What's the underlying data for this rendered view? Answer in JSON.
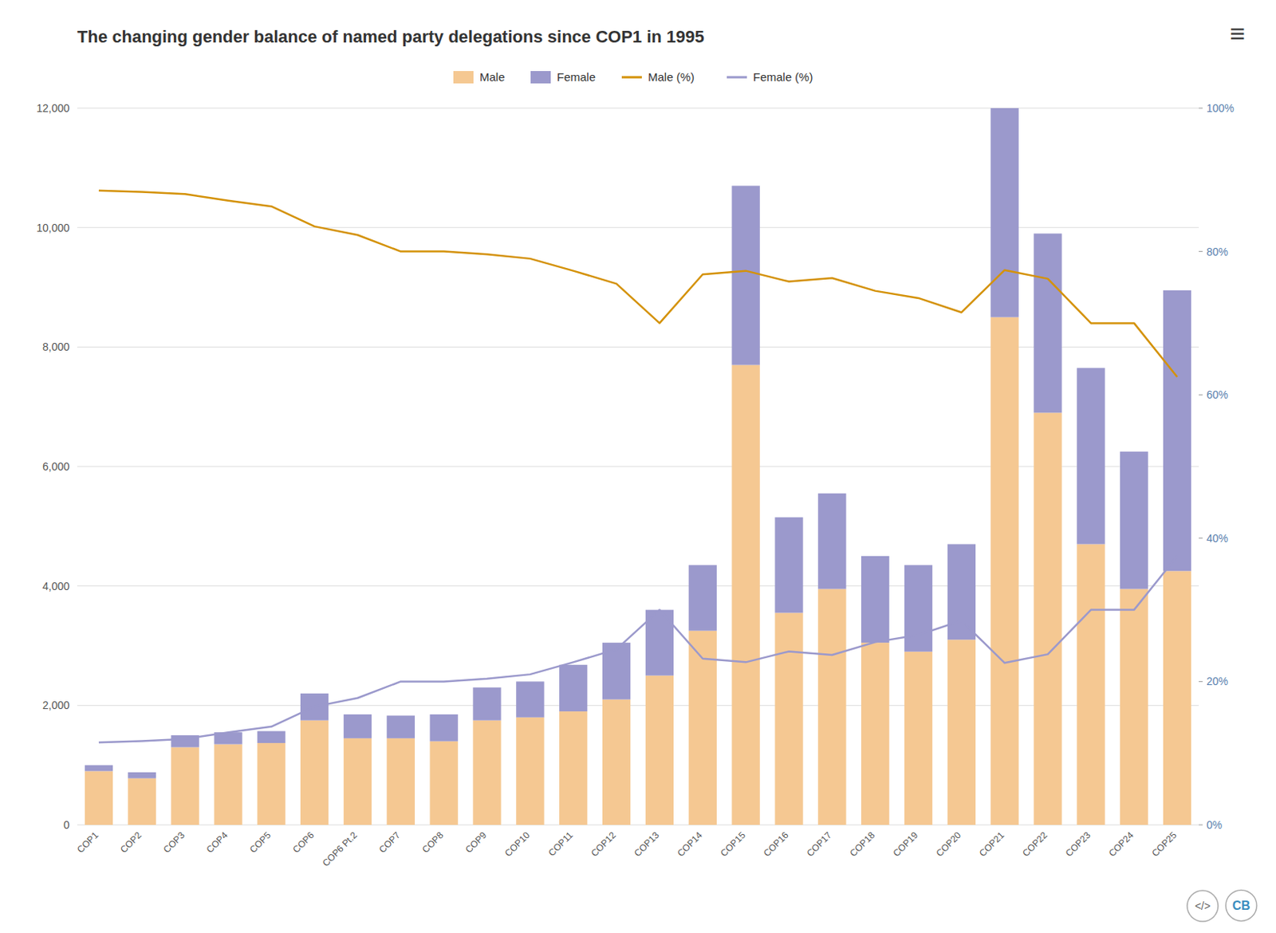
{
  "chart_data": {
    "type": "bar",
    "title": "The changing gender balance of named party delegations since COP1 in 1995",
    "categories": [
      "COP1",
      "COP2",
      "COP3",
      "COP4",
      "COP5",
      "COP6",
      "COP6 Pt.2",
      "COP7",
      "COP8",
      "COP9",
      "COP10",
      "COP11",
      "COP12",
      "COP13",
      "COP14",
      "COP15",
      "COP16",
      "COP17",
      "COP18",
      "COP19",
      "COP20",
      "COP21",
      "COP22",
      "COP23",
      "COP24",
      "COP25"
    ],
    "series": [
      {
        "name": "Male",
        "type": "bar",
        "color": "#F5C892",
        "values": [
          900,
          780,
          1300,
          1350,
          1370,
          1750,
          1450,
          1450,
          1400,
          1750,
          1800,
          1900,
          2100,
          2500,
          3250,
          7700,
          3550,
          3950,
          3050,
          2900,
          3100,
          8500,
          6900,
          4700,
          3950,
          4250
        ]
      },
      {
        "name": "Female",
        "type": "bar",
        "color": "#9B99CC",
        "values": [
          100,
          100,
          200,
          200,
          200,
          450,
          400,
          380,
          450,
          550,
          600,
          780,
          950,
          1100,
          1100,
          3000,
          1600,
          1600,
          1450,
          1450,
          1600,
          3500,
          3000,
          2950,
          2300,
          4700
        ]
      },
      {
        "name": "Male (%)",
        "type": "line",
        "axis": "y2",
        "color": "#D4920A",
        "line_style": "solid",
        "values": [
          0.885,
          0.883,
          0.88,
          0.871,
          0.863,
          0.835,
          0.823,
          0.8,
          0.8,
          0.796,
          0.79,
          0.773,
          0.755,
          0.7,
          0.768,
          0.773,
          0.758,
          0.763,
          0.745,
          0.735,
          0.715,
          0.774,
          0.762,
          0.7,
          0.7,
          0.625
        ]
      },
      {
        "name": "Female (%)",
        "type": "line",
        "axis": "y2",
        "color": "#9B99CC",
        "line_style": "solid",
        "values": [
          0.115,
          0.117,
          0.12,
          0.129,
          0.137,
          0.165,
          0.177,
          0.2,
          0.2,
          0.204,
          0.21,
          0.227,
          0.245,
          0.3,
          0.232,
          0.227,
          0.242,
          0.237,
          0.255,
          0.265,
          0.285,
          0.226,
          0.238,
          0.3,
          0.3,
          0.375
        ]
      }
    ],
    "stacked": true,
    "ylim": [
      0,
      12000
    ],
    "yticks": [
      0,
      {
        "value": 2000,
        "label": "2,000"
      },
      {
        "value": 4000,
        "label": "4,000"
      },
      {
        "value": 6000,
        "label": "6,000"
      },
      {
        "value": 8000,
        "label": "8,000"
      },
      {
        "value": 10000,
        "label": "10,000"
      },
      {
        "value": 12000,
        "label": "12,000"
      }
    ],
    "y2lim": [
      0,
      1.0
    ],
    "y2ticks": [
      {
        "value": 0.0,
        "label": "0%"
      },
      {
        "value": 0.2,
        "label": "20%"
      },
      {
        "value": 0.4,
        "label": "40%"
      },
      {
        "value": 0.6,
        "label": "60%"
      },
      {
        "value": 0.8,
        "label": "80%"
      },
      {
        "value": 1.0,
        "label": "100%"
      }
    ],
    "grid": true,
    "legend": "top",
    "annotations": [
      "≡",
      "</>",
      "CB"
    ]
  }
}
